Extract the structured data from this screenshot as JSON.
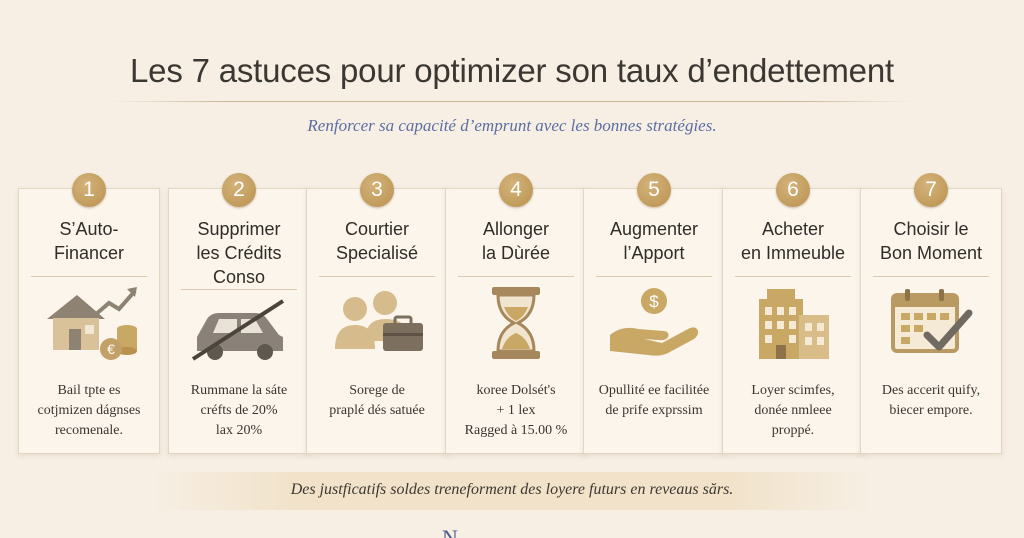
{
  "header": {
    "title": "Les 7 astuces pour optimizer son taux d’endettement",
    "subtitle": "Renforcer sa capacité d’emprunt avec les bonnes stratégies."
  },
  "colors": {
    "background": "#f7efe4",
    "card": "#fbf5ec",
    "gold": "#c2a068",
    "subtitle": "#5b6ea3",
    "text": "#302c28"
  },
  "cards": [
    {
      "number": "1",
      "title": "S’Auto-\nFinancer",
      "icon": "house-growth-euro-icon",
      "description": "Bail tpte es\ncotjmizen dágnses\nrecomenale."
    },
    {
      "number": "2",
      "title": "Supprimer\nles Crédits\nConso",
      "icon": "crossed-car-icon",
      "description": "Rummane la sáte\ncréfts de 20%\nlax 20%"
    },
    {
      "number": "3",
      "title": "Courtier\nSpecialisé",
      "icon": "advisors-briefcase-icon",
      "description": "Sorege de\npraplé dés satuée"
    },
    {
      "number": "4",
      "title": "Allonger\nla Dùrée",
      "icon": "hourglass-icon",
      "description": "koree Dolsét's\n+ 1 lex\nRagged à 15.00 %"
    },
    {
      "number": "5",
      "title": "Augmenter\nl’Apport",
      "icon": "hand-coin-icon",
      "description": "Opullité ee facilitée\nde prife exprssim"
    },
    {
      "number": "6",
      "title": "Acheter\nen Immeuble",
      "icon": "apartment-building-icon",
      "description": "Loyer scimfes,\ndonée nmleee\nproppé."
    },
    {
      "number": "7",
      "title": "Choisir le\nBon Moment",
      "icon": "calendar-check-icon",
      "description": "Des accerit quify,\nbiecer empore."
    }
  ],
  "footer": {
    "text": "Des justficatifs soldes treneforment des loyere futurs en reveaus sărs."
  }
}
